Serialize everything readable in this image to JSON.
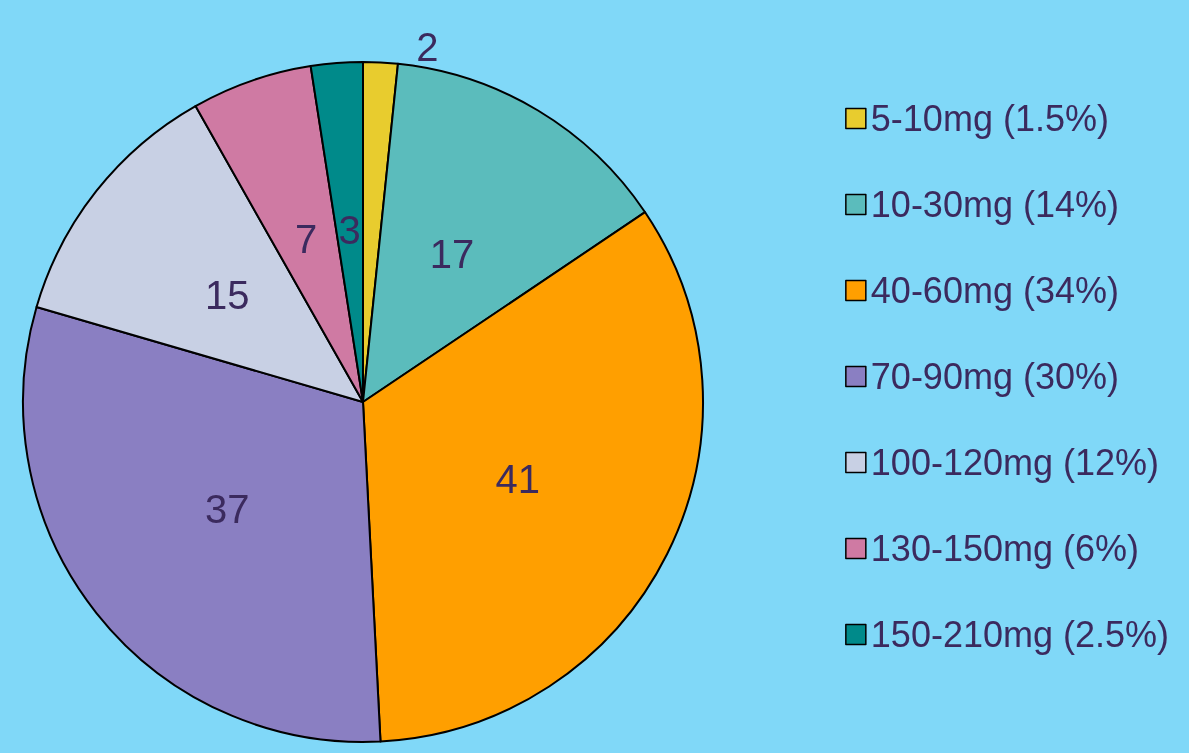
{
  "chart_data": {
    "type": "pie",
    "categories": [
      "5-10mg (1.5%)",
      "10-30mg (14%)",
      "40-60mg (34%)",
      "70-90mg (30%)",
      "100-120mg (12%)",
      "130-150mg (6%)",
      "150-210mg (2.5%)"
    ],
    "values": [
      2,
      17,
      41,
      37,
      15,
      7,
      3
    ],
    "colors": [
      "#e8cc2e",
      "#5bbcbc",
      "#ff9f00",
      "#8a7fc2",
      "#c8d0e4",
      "#cf7aa3",
      "#008a8a"
    ],
    "data_labels": true,
    "legend": "right"
  }
}
